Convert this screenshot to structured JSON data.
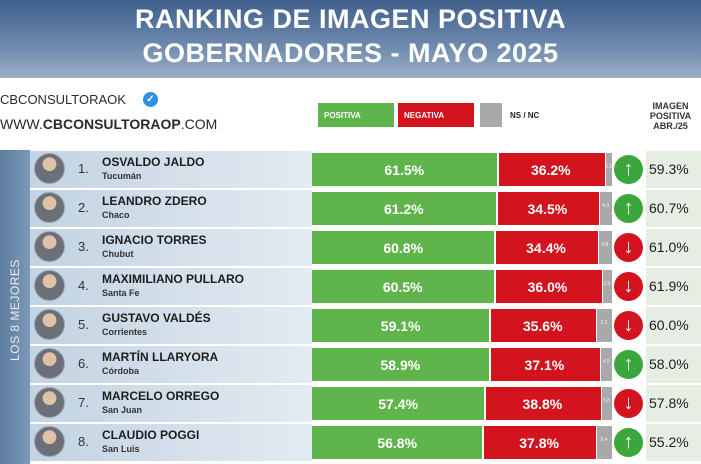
{
  "header": {
    "title_line1": "RANKING DE IMAGEN POSITIVA",
    "title_line2": "GOBERNADORES - MAYO 2025"
  },
  "brand": {
    "handle": "CBCONSULTORAOK",
    "site_prefix": "WWW.",
    "site_bold": "CBCONSULTORAOP",
    "site_suffix": ".COM"
  },
  "side_label": "LOS 8 MEJORES",
  "column_header": {
    "line1": "IMAGEN",
    "line2": "POSITIVA",
    "line3": "ABR./25"
  },
  "colors": {
    "positive": "#5fb44c",
    "negative": "#d3131d",
    "ns_nc": "#a9a9a9",
    "arrow_up": "#3aa63c",
    "arrow_down": "#d3131d"
  },
  "chart_data": {
    "type": "bar",
    "stacked": true,
    "orientation": "horizontal",
    "title": "RANKING DE IMAGEN POSITIVA GOBERNADORES - MAYO 2025",
    "legend": [
      "POSITIVA",
      "NEGATIVA",
      "NS / NC"
    ],
    "categories": [
      "OSVALDO JALDO",
      "LEANDRO ZDERO",
      "IGNACIO TORRES",
      "MAXIMILIANO PULLARO",
      "GUSTAVO VALDÉS",
      "MARTÍN LLARYORA",
      "MARCELO ORREGO",
      "CLAUDIO POGGI"
    ],
    "provinces": [
      "Tucumán",
      "Chaco",
      "Chubut",
      "Santa Fe",
      "Corrientes",
      "Córdoba",
      "San Juan",
      "San Luis"
    ],
    "series": [
      {
        "name": "POSITIVA",
        "values": [
          61.5,
          61.2,
          60.8,
          60.5,
          59.1,
          58.9,
          57.4,
          56.8
        ]
      },
      {
        "name": "NEGATIVA",
        "values": [
          36.2,
          34.5,
          34.4,
          36.0,
          35.6,
          37.1,
          38.8,
          37.8
        ]
      },
      {
        "name": "NS / NC",
        "values": [
          2.3,
          4.3,
          4.8,
          3.5,
          5.3,
          4.0,
          3.8,
          5.4
        ]
      }
    ],
    "previous_positive_abr25": [
      59.3,
      60.7,
      61.0,
      61.9,
      60.0,
      58.0,
      57.8,
      55.2
    ],
    "trend": [
      "up",
      "up",
      "down",
      "down",
      "down",
      "up",
      "down",
      "up"
    ],
    "xlim": [
      0,
      100
    ]
  }
}
